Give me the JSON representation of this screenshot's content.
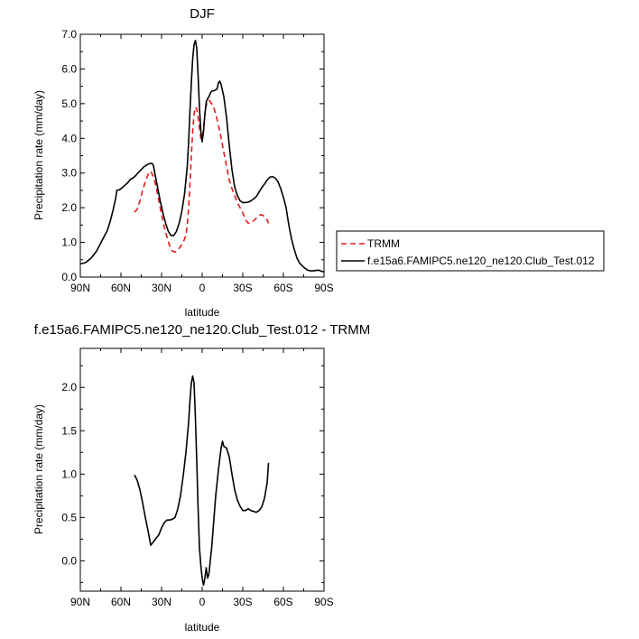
{
  "chart_data": [
    {
      "type": "line",
      "title": "DJF",
      "xlabel": "latitude",
      "ylabel": "Precipitation rate (mm/day)",
      "xlim": [
        -90,
        90
      ],
      "ylim": [
        0,
        7
      ],
      "x_ticks": [
        -90,
        -60,
        -30,
        0,
        30,
        60,
        90
      ],
      "x_tick_labels": [
        "90N",
        "60N",
        "30N",
        "0",
        "30S",
        "60S",
        "90S"
      ],
      "y_ticks": [
        0,
        1,
        2,
        3,
        4,
        5,
        6,
        7
      ],
      "y_tick_labels": [
        "0.0",
        "1.0",
        "2.0",
        "3.0",
        "4.0",
        "5.0",
        "6.0",
        "7.0"
      ],
      "legend_position": "right",
      "series": [
        {
          "name": "TRMM",
          "color": "#e41a1c",
          "dash": "dashed",
          "points": [
            [
              -50,
              1.87
            ],
            [
              -48,
              1.95
            ],
            [
              -46,
              2.2
            ],
            [
              -44,
              2.5
            ],
            [
              -42,
              2.75
            ],
            [
              -40,
              2.95
            ],
            [
              -38,
              3.05
            ],
            [
              -36,
              2.9
            ],
            [
              -34,
              2.6
            ],
            [
              -32,
              2.2
            ],
            [
              -30,
              1.8
            ],
            [
              -28,
              1.45
            ],
            [
              -26,
              1.15
            ],
            [
              -24,
              0.9
            ],
            [
              -22,
              0.75
            ],
            [
              -20,
              0.72
            ],
            [
              -18,
              0.78
            ],
            [
              -16,
              0.88
            ],
            [
              -14,
              1.0
            ],
            [
              -12,
              1.2
            ],
            [
              -11,
              1.5
            ],
            [
              -10,
              2.0
            ],
            [
              -9,
              2.7
            ],
            [
              -8,
              3.5
            ],
            [
              -7,
              4.2
            ],
            [
              -6,
              4.7
            ],
            [
              -5,
              4.9
            ],
            [
              -4,
              4.85
            ],
            [
              -3,
              4.6
            ],
            [
              -2,
              4.3
            ],
            [
              -1,
              4.0
            ],
            [
              0,
              4.0
            ],
            [
              1,
              4.3
            ],
            [
              2,
              4.7
            ],
            [
              3,
              4.95
            ],
            [
              4,
              5.05
            ],
            [
              5,
              5.1
            ],
            [
              6,
              5.05
            ],
            [
              8,
              4.95
            ],
            [
              10,
              4.7
            ],
            [
              12,
              4.4
            ],
            [
              14,
              4.0
            ],
            [
              16,
              3.6
            ],
            [
              18,
              3.2
            ],
            [
              20,
              2.8
            ],
            [
              22,
              2.55
            ],
            [
              24,
              2.35
            ],
            [
              26,
              2.15
            ],
            [
              28,
              2.0
            ],
            [
              30,
              1.85
            ],
            [
              32,
              1.65
            ],
            [
              34,
              1.55
            ],
            [
              36,
              1.58
            ],
            [
              38,
              1.62
            ],
            [
              40,
              1.7
            ],
            [
              42,
              1.78
            ],
            [
              44,
              1.8
            ],
            [
              46,
              1.75
            ],
            [
              48,
              1.65
            ],
            [
              49,
              1.55
            ]
          ]
        },
        {
          "name": "f.e15a6.FAMIPC5.ne120_ne120.Club_Test.012",
          "color": "#000000",
          "dash": "solid",
          "points": [
            [
              -90,
              0.38
            ],
            [
              -86,
              0.42
            ],
            [
              -82,
              0.55
            ],
            [
              -78,
              0.75
            ],
            [
              -74,
              1.05
            ],
            [
              -70,
              1.35
            ],
            [
              -68,
              1.6
            ],
            [
              -66,
              1.9
            ],
            [
              -64,
              2.25
            ],
            [
              -63,
              2.5
            ],
            [
              -61,
              2.52
            ],
            [
              -59,
              2.58
            ],
            [
              -57,
              2.65
            ],
            [
              -55,
              2.72
            ],
            [
              -53,
              2.82
            ],
            [
              -51,
              2.86
            ],
            [
              -49,
              2.93
            ],
            [
              -47,
              3.02
            ],
            [
              -45,
              3.1
            ],
            [
              -43,
              3.18
            ],
            [
              -41,
              3.23
            ],
            [
              -39,
              3.27
            ],
            [
              -37,
              3.28
            ],
            [
              -36,
              3.22
            ],
            [
              -35,
              3.0
            ],
            [
              -33,
              2.6
            ],
            [
              -31,
              2.2
            ],
            [
              -29,
              1.85
            ],
            [
              -27,
              1.55
            ],
            [
              -25,
              1.32
            ],
            [
              -23,
              1.2
            ],
            [
              -21,
              1.2
            ],
            [
              -19,
              1.32
            ],
            [
              -17,
              1.55
            ],
            [
              -15,
              1.9
            ],
            [
              -13,
              2.4
            ],
            [
              -11,
              3.2
            ],
            [
              -10,
              3.9
            ],
            [
              -9,
              4.8
            ],
            [
              -8,
              5.6
            ],
            [
              -7,
              6.3
            ],
            [
              -6,
              6.7
            ],
            [
              -5,
              6.82
            ],
            [
              -4,
              6.6
            ],
            [
              -3,
              5.8
            ],
            [
              -2,
              4.9
            ],
            [
              -1,
              4.2
            ],
            [
              0,
              3.9
            ],
            [
              1,
              4.2
            ],
            [
              2,
              4.7
            ],
            [
              3,
              5.05
            ],
            [
              4,
              5.15
            ],
            [
              5,
              5.2
            ],
            [
              6,
              5.3
            ],
            [
              7,
              5.36
            ],
            [
              9,
              5.38
            ],
            [
              11,
              5.42
            ],
            [
              12,
              5.6
            ],
            [
              13,
              5.65
            ],
            [
              14,
              5.55
            ],
            [
              16,
              5.2
            ],
            [
              18,
              4.6
            ],
            [
              20,
              3.8
            ],
            [
              22,
              3.1
            ],
            [
              24,
              2.6
            ],
            [
              26,
              2.35
            ],
            [
              28,
              2.2
            ],
            [
              30,
              2.15
            ],
            [
              32,
              2.15
            ],
            [
              34,
              2.16
            ],
            [
              36,
              2.2
            ],
            [
              38,
              2.25
            ],
            [
              40,
              2.32
            ],
            [
              42,
              2.45
            ],
            [
              44,
              2.58
            ],
            [
              46,
              2.68
            ],
            [
              48,
              2.8
            ],
            [
              50,
              2.88
            ],
            [
              52,
              2.9
            ],
            [
              54,
              2.85
            ],
            [
              56,
              2.75
            ],
            [
              58,
              2.55
            ],
            [
              60,
              2.3
            ],
            [
              62,
              2.0
            ],
            [
              64,
              1.5
            ],
            [
              66,
              1.1
            ],
            [
              68,
              0.8
            ],
            [
              70,
              0.55
            ],
            [
              72,
              0.4
            ],
            [
              74,
              0.32
            ],
            [
              76,
              0.25
            ],
            [
              78,
              0.2
            ],
            [
              80,
              0.18
            ],
            [
              82,
              0.18
            ],
            [
              84,
              0.19
            ],
            [
              86,
              0.2
            ],
            [
              88,
              0.17
            ],
            [
              90,
              0.15
            ]
          ]
        }
      ]
    },
    {
      "type": "line",
      "title": "f.e15a6.FAMIPC5.ne120_ne120.Club_Test.012 - TRMM",
      "xlabel": "latitude",
      "ylabel": "Precipitation rate (mm/day)",
      "xlim": [
        -90,
        90
      ],
      "ylim": [
        -0.35,
        2.45
      ],
      "x_ticks": [
        -90,
        -60,
        -30,
        0,
        30,
        60,
        90
      ],
      "x_tick_labels": [
        "90N",
        "60N",
        "30N",
        "0",
        "30S",
        "60S",
        "90S"
      ],
      "y_ticks": [
        0,
        0.5,
        1.0,
        1.5,
        2.0
      ],
      "y_tick_labels": [
        "0.0",
        "0.5",
        "1.0",
        "1.5",
        "2.0"
      ],
      "series": [
        {
          "name": "",
          "color": "#000000",
          "dash": "solid",
          "points": [
            [
              -50,
              0.99
            ],
            [
              -48,
              0.93
            ],
            [
              -46,
              0.82
            ],
            [
              -44,
              0.67
            ],
            [
              -42,
              0.5
            ],
            [
              -40,
              0.35
            ],
            [
              -38,
              0.18
            ],
            [
              -36,
              0.22
            ],
            [
              -34,
              0.26
            ],
            [
              -32,
              0.3
            ],
            [
              -30,
              0.38
            ],
            [
              -28,
              0.44
            ],
            [
              -26,
              0.47
            ],
            [
              -24,
              0.47
            ],
            [
              -22,
              0.48
            ],
            [
              -20,
              0.5
            ],
            [
              -18,
              0.6
            ],
            [
              -16,
              0.75
            ],
            [
              -14,
              0.98
            ],
            [
              -12,
              1.25
            ],
            [
              -10,
              1.6
            ],
            [
              -9,
              1.85
            ],
            [
              -8,
              2.05
            ],
            [
              -7,
              2.13
            ],
            [
              -6,
              2.05
            ],
            [
              -5,
              1.65
            ],
            [
              -4,
              1.15
            ],
            [
              -3,
              0.6
            ],
            [
              -2,
              0.15
            ],
            [
              -1,
              -0.05
            ],
            [
              0,
              -0.2
            ],
            [
              1,
              -0.28
            ],
            [
              2,
              -0.2
            ],
            [
              3,
              -0.08
            ],
            [
              4,
              -0.2
            ],
            [
              5,
              -0.15
            ],
            [
              6,
              0.0
            ],
            [
              7,
              0.15
            ],
            [
              8,
              0.35
            ],
            [
              10,
              0.75
            ],
            [
              12,
              1.05
            ],
            [
              14,
              1.3
            ],
            [
              15,
              1.38
            ],
            [
              16,
              1.32
            ],
            [
              18,
              1.3
            ],
            [
              20,
              1.2
            ],
            [
              22,
              1.0
            ],
            [
              24,
              0.82
            ],
            [
              26,
              0.7
            ],
            [
              28,
              0.63
            ],
            [
              30,
              0.58
            ],
            [
              32,
              0.58
            ],
            [
              34,
              0.6
            ],
            [
              36,
              0.58
            ],
            [
              38,
              0.57
            ],
            [
              40,
              0.56
            ],
            [
              42,
              0.58
            ],
            [
              44,
              0.62
            ],
            [
              46,
              0.72
            ],
            [
              48,
              0.9
            ],
            [
              49,
              1.13
            ]
          ]
        }
      ]
    }
  ]
}
